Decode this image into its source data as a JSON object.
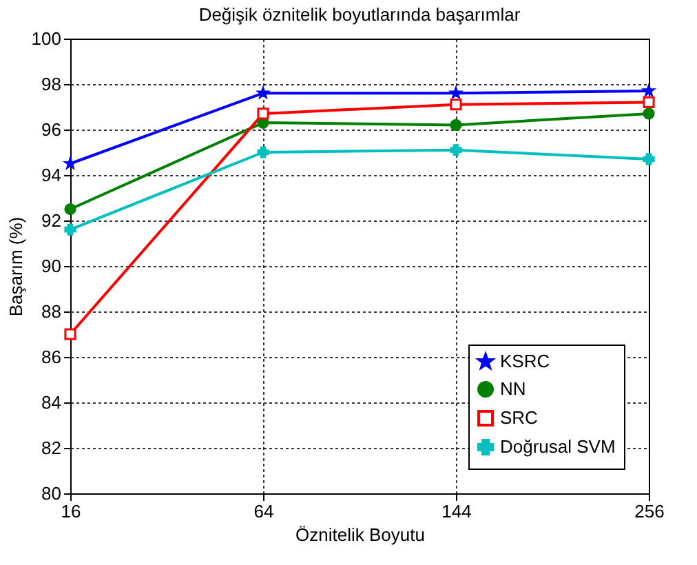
{
  "chart_data": {
    "type": "line",
    "title": "Değişik öznitelik boyutlarında başarımlar",
    "xlabel": "Öznitelik Boyutu",
    "ylabel": "Başarım (%)",
    "categories": [
      "16",
      "64",
      "144",
      "256"
    ],
    "series": [
      {
        "name": "KSRC",
        "color": "#0000ff",
        "marker": "star",
        "values": [
          94.5,
          97.6,
          97.6,
          97.7
        ]
      },
      {
        "name": "NN",
        "color": "#008000",
        "marker": "circle",
        "values": [
          92.5,
          96.3,
          96.2,
          96.7
        ]
      },
      {
        "name": "SRC",
        "color": "#ff0000",
        "marker": "square",
        "values": [
          87.0,
          96.7,
          97.1,
          97.2
        ]
      },
      {
        "name": "Doğrusal SVM",
        "color": "#00bfbf",
        "marker": "cross",
        "values": [
          91.6,
          95.0,
          95.1,
          94.7
        ]
      }
    ],
    "ylim": [
      80,
      100
    ],
    "yticks": [
      80,
      82,
      84,
      86,
      88,
      90,
      92,
      94,
      96,
      98,
      100
    ],
    "grid": true,
    "legend": "bottom right",
    "line_style": "solid"
  }
}
